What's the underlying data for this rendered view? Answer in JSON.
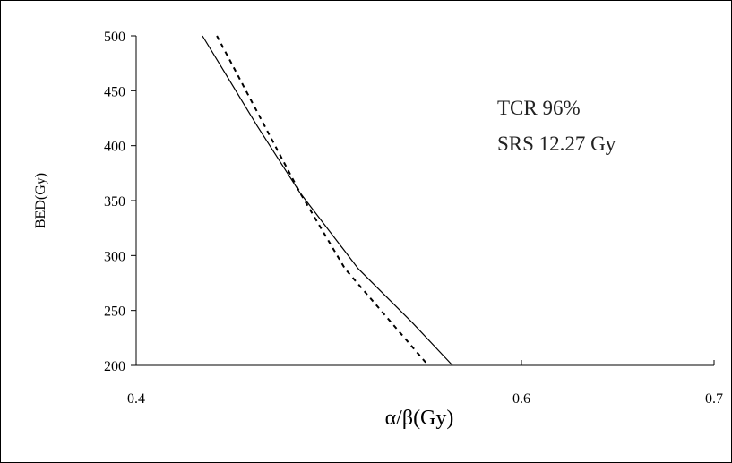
{
  "chart_data": {
    "type": "line",
    "xlabel": "α/β(Gy)",
    "ylabel": "BED(Gy)",
    "annotations": [
      "TCR 96%",
      "SRS 12.27 Gy"
    ],
    "xlim": [
      0.4,
      0.7
    ],
    "xticks": [
      0.4,
      0.6,
      0.7
    ],
    "ylim": [
      200,
      500
    ],
    "yticks": [
      200,
      250,
      300,
      350,
      400,
      450,
      500
    ],
    "series": [
      {
        "style": "solid",
        "color": "#000000",
        "x": [
          0.4344,
          0.4628,
          0.4851,
          0.5153,
          0.5433,
          0.5642
        ],
        "values": [
          500,
          418,
          357,
          288,
          239,
          200
        ]
      },
      {
        "style": "dashed",
        "color": "#000000",
        "x": [
          0.4419,
          0.4851,
          0.5084,
          0.5516
        ],
        "values": [
          500,
          357,
          288,
          200
        ]
      }
    ]
  }
}
